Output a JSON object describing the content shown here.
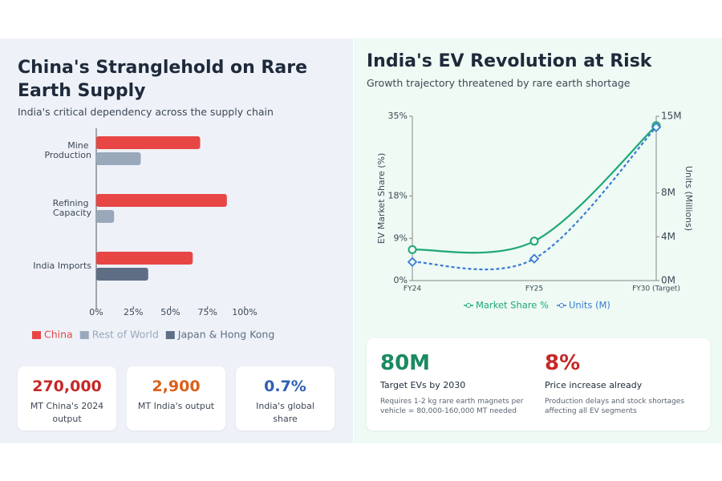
{
  "left_panel": {
    "title": "China's Stranglehold on Rare Earth Supply",
    "subtitle": "India's critical dependency across the supply chain",
    "stats": [
      {
        "value": "270,000",
        "label": "MT China's 2024 output"
      },
      {
        "value": "2,900",
        "label": "MT India's output"
      },
      {
        "value": "0.7%",
        "label": "India's global share"
      }
    ]
  },
  "right_panel": {
    "title": "India's EV Revolution at Risk",
    "subtitle": "Growth trajectory threatened by rare earth shortage",
    "stats": [
      {
        "value": "80M",
        "label": "Target EVs by 2030",
        "note": "Requires 1-2 kg rare earth magnets per vehicle = 80,000-160,000 MT needed"
      },
      {
        "value": "8%",
        "label": "Price increase already",
        "note": "Production delays and stock shortages affecting all EV segments"
      }
    ]
  },
  "chart_data": [
    {
      "type": "hbar",
      "categories": [
        "Mine Production",
        "Refining Capacity",
        "India Imports"
      ],
      "series": [
        {
          "name": "China",
          "color": "#e84545",
          "values": [
            70,
            88,
            65
          ]
        },
        {
          "name": "Rest of World",
          "color": "#9aa8bb",
          "values": [
            30,
            12,
            null
          ]
        },
        {
          "name": "Japan & Hong Kong",
          "color": "#5f6e85",
          "values": [
            null,
            null,
            35
          ]
        }
      ],
      "xlim": [
        0,
        100
      ],
      "xticks": [
        {
          "value": 0,
          "label": "0%"
        },
        {
          "value": 25,
          "label": "25%"
        },
        {
          "value": 50,
          "label": "50%"
        },
        {
          "value": 75,
          "label": "75%"
        },
        {
          "value": 100,
          "label": "100%"
        }
      ],
      "legend": "bottom"
    },
    {
      "type": "line",
      "categories": [
        "FY24",
        "FY25",
        "FY30 (Target)"
      ],
      "ylabel": "EV Market Share (%)",
      "y2label": "Units (Millions)",
      "series": [
        {
          "name": "Market Share %",
          "color": "#1fa67a",
          "values": [
            6.6,
            8.4,
            33
          ]
        },
        {
          "name": "Units (M)",
          "color": "#3a7bd5",
          "values": [
            1.7,
            2,
            14
          ],
          "axis": "y2",
          "dashed": true
        }
      ],
      "ylim": [
        0,
        35
      ],
      "yticks": [
        {
          "value": 0,
          "label": "0%"
        },
        {
          "value": 9,
          "label": "9%"
        },
        {
          "value": 18,
          "label": "18%"
        },
        {
          "value": 35,
          "label": "35%"
        }
      ],
      "y2lim": [
        0,
        15
      ],
      "y2ticks": [
        {
          "value": 0,
          "label": "0M"
        },
        {
          "value": 4,
          "label": "4M"
        },
        {
          "value": 8,
          "label": "8M"
        },
        {
          "value": 15,
          "label": "15M"
        }
      ],
      "legend": "bottom"
    }
  ]
}
